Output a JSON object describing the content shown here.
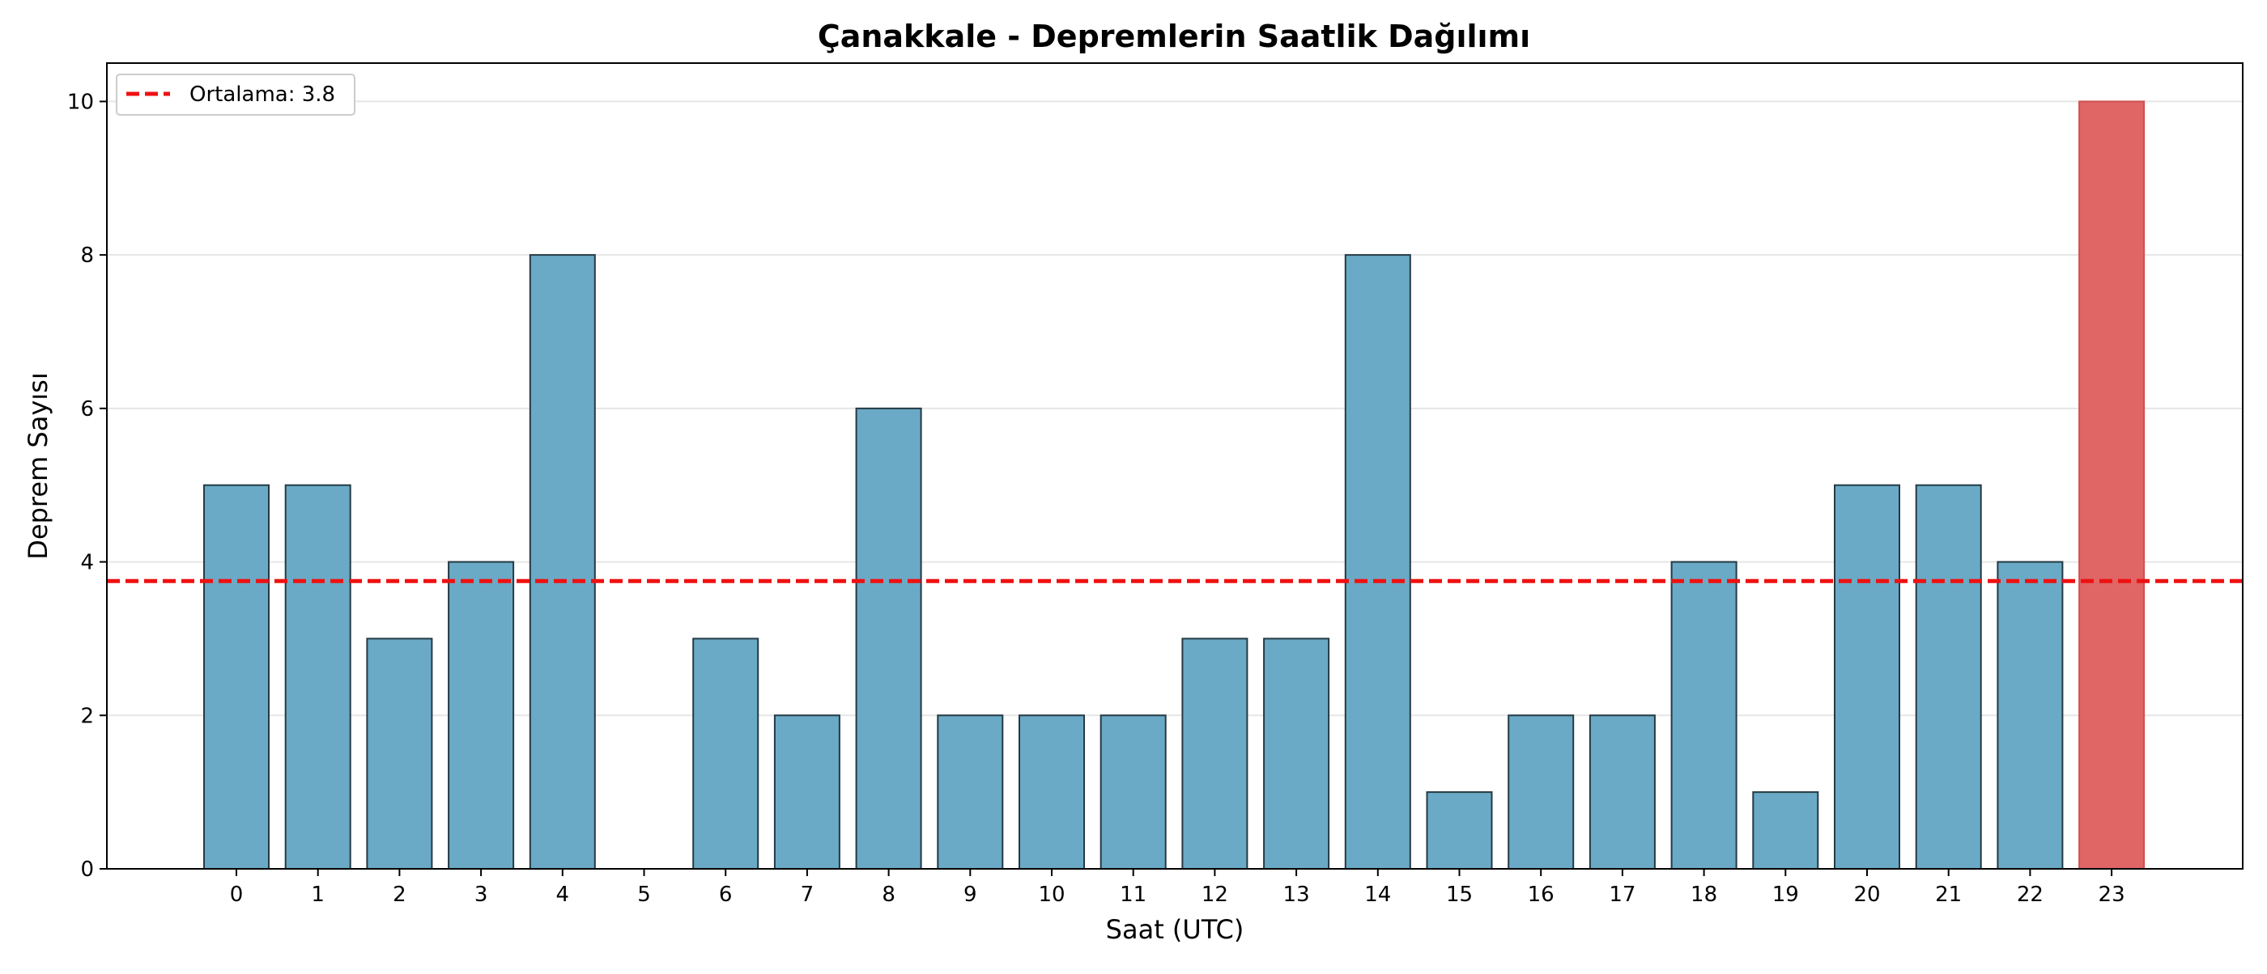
{
  "chart_data": {
    "type": "bar",
    "title": "Çanakkale - Depremlerin Saatlik Dağılımı",
    "xlabel": "Saat (UTC)",
    "ylabel": "Deprem Sayısı",
    "categories": [
      "0",
      "1",
      "2",
      "3",
      "4",
      "5",
      "6",
      "7",
      "8",
      "9",
      "10",
      "11",
      "12",
      "13",
      "14",
      "15",
      "16",
      "17",
      "18",
      "19",
      "20",
      "21",
      "22",
      "23"
    ],
    "values": [
      5,
      5,
      3,
      4,
      8,
      0,
      3,
      2,
      6,
      2,
      2,
      2,
      3,
      3,
      8,
      1,
      2,
      2,
      4,
      1,
      5,
      5,
      4,
      10
    ],
    "ylim": [
      0,
      10.5
    ],
    "yticks": [
      0,
      2,
      4,
      6,
      8,
      10
    ],
    "grid": "horizontal",
    "bar_color": "#6aaac6",
    "highlight_color": "#e06666",
    "highlight_index": 23,
    "mean": {
      "value": 3.75,
      "label": "Ortalama: 3.8",
      "color": "#ee1111",
      "style": "dashed"
    },
    "legend_position": "top-left"
  }
}
